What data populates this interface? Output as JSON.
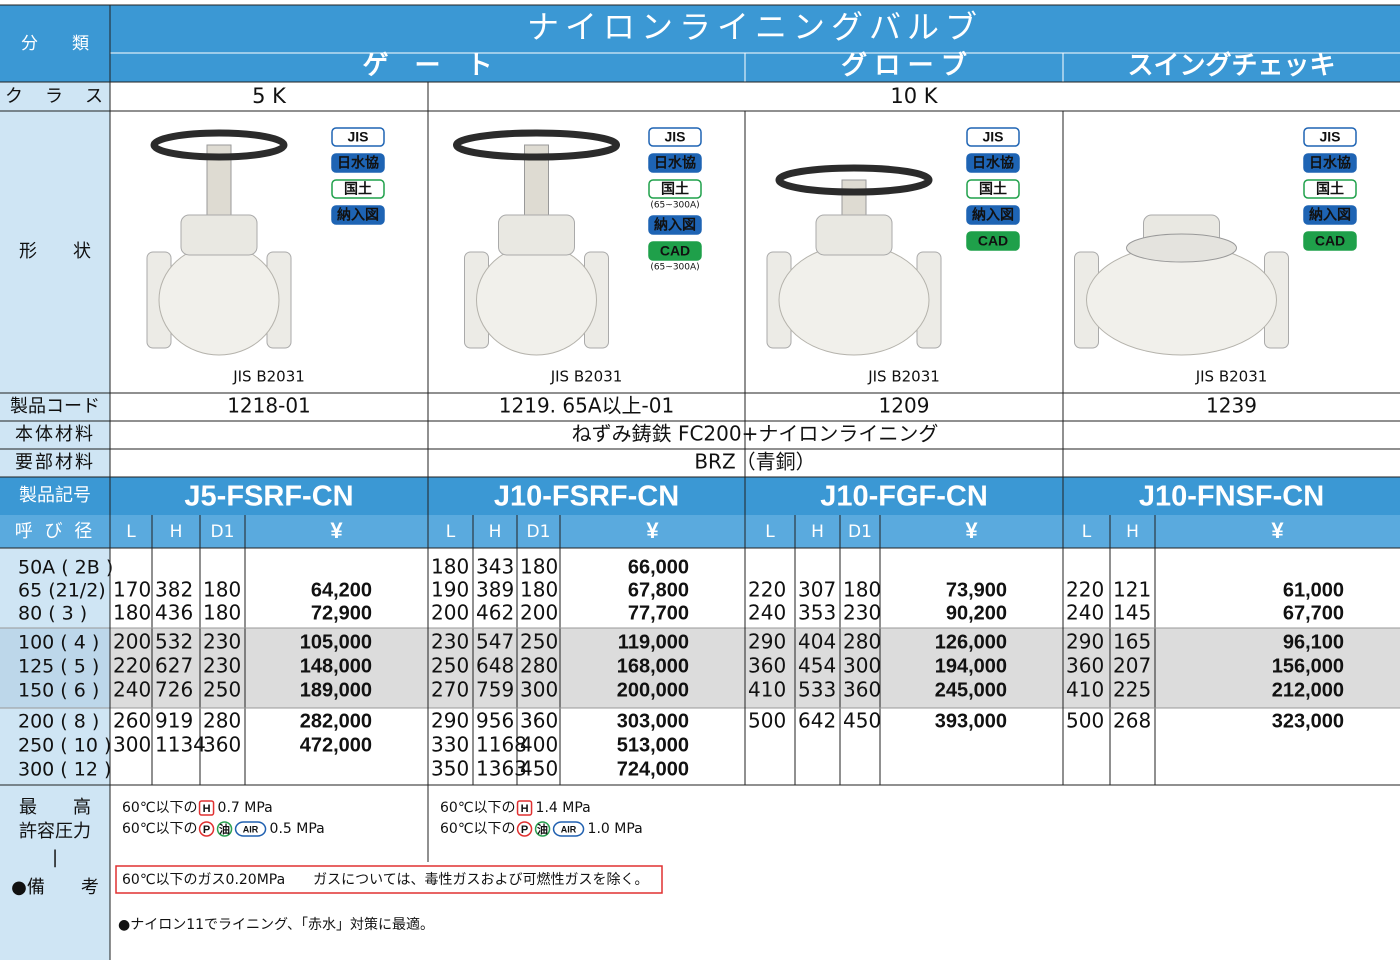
{
  "header": {
    "category_label": "分　　類",
    "title": "ナイロンライニングバルブ",
    "types": [
      "ゲ　ー　ト",
      "グ ロ ー ブ",
      "スイングチェッキ"
    ]
  },
  "class": {
    "label": "ク　ラ　ス",
    "values": [
      "5 K",
      "10 K"
    ]
  },
  "shape": {
    "label": "形　　状",
    "products": [
      {
        "standard": "JIS B2031",
        "badges": [
          {
            "text": "JIS",
            "kind": "outline-blue"
          },
          {
            "text": "日水協",
            "kind": "fill-blue"
          },
          {
            "text": "国土",
            "kind": "outline-green"
          },
          {
            "text": "納入図",
            "kind": "fill-blue"
          }
        ]
      },
      {
        "standard": "JIS B2031",
        "badges": [
          {
            "text": "JIS",
            "kind": "outline-blue"
          },
          {
            "text": "日水協",
            "kind": "fill-blue"
          },
          {
            "text": "国土",
            "kind": "outline-green",
            "note": "(65~300A)"
          },
          {
            "text": "納入図",
            "kind": "fill-blue"
          },
          {
            "text": "CAD",
            "kind": "fill-green",
            "note": "(65~300A)"
          }
        ]
      },
      {
        "standard": "JIS B2031",
        "badges": [
          {
            "text": "JIS",
            "kind": "outline-blue"
          },
          {
            "text": "日水協",
            "kind": "fill-blue"
          },
          {
            "text": "国土",
            "kind": "outline-green"
          },
          {
            "text": "納入図",
            "kind": "fill-blue"
          },
          {
            "text": "CAD",
            "kind": "fill-green"
          }
        ]
      },
      {
        "standard": "JIS B2031",
        "badges": [
          {
            "text": "JIS",
            "kind": "outline-blue"
          },
          {
            "text": "日水協",
            "kind": "fill-blue"
          },
          {
            "text": "国土",
            "kind": "outline-green"
          },
          {
            "text": "納入図",
            "kind": "fill-blue"
          },
          {
            "text": "CAD",
            "kind": "fill-green"
          }
        ]
      }
    ]
  },
  "codes": {
    "label": "製品コード",
    "values": [
      "1218-01",
      "1219. 65A以上-01",
      "1209",
      "1239"
    ]
  },
  "body_material": {
    "label": "本体材料",
    "value": "ねずみ鋳鉄 FC200+ナイロンライニング"
  },
  "key_material": {
    "label": "要部材料",
    "value": "BRZ（青銅）"
  },
  "models": {
    "label": "製品記号",
    "values": [
      "J5-FSRF-CN",
      "J10-FSRF-CN",
      "J10-FGF-CN",
      "J10-FNSF-CN"
    ]
  },
  "table": {
    "size_label": "呼 び 径",
    "sizes": [
      "50A ( 2B )",
      "65 (21/2)",
      "80 ( 3 )",
      "100 ( 4 )",
      "125 ( 5 )",
      "150 ( 6 )",
      "200 ( 8 )",
      "250 ( 10 )",
      "300 ( 12 )"
    ],
    "groups": [
      {
        "columns": [
          "L",
          "H",
          "D1",
          "¥"
        ],
        "rows": [
          null,
          [
            "170",
            "382",
            "180",
            "64,200"
          ],
          [
            "180",
            "436",
            "180",
            "72,900"
          ],
          [
            "200",
            "532",
            "230",
            "105,000"
          ],
          [
            "220",
            "627",
            "230",
            "148,000"
          ],
          [
            "240",
            "726",
            "250",
            "189,000"
          ],
          [
            "260",
            "919",
            "280",
            "282,000"
          ],
          [
            "300",
            "1134",
            "360",
            "472,000"
          ],
          null
        ]
      },
      {
        "columns": [
          "L",
          "H",
          "D1",
          "¥"
        ],
        "rows": [
          [
            "180",
            "343",
            "180",
            "66,000"
          ],
          [
            "190",
            "389",
            "180",
            "67,800"
          ],
          [
            "200",
            "462",
            "200",
            "77,700"
          ],
          [
            "230",
            "547",
            "250",
            "119,000"
          ],
          [
            "250",
            "648",
            "280",
            "168,000"
          ],
          [
            "270",
            "759",
            "300",
            "200,000"
          ],
          [
            "290",
            "956",
            "360",
            "303,000"
          ],
          [
            "330",
            "1168",
            "400",
            "513,000"
          ],
          [
            "350",
            "1363",
            "450",
            "724,000"
          ]
        ]
      },
      {
        "columns": [
          "L",
          "H",
          "D1",
          "¥"
        ],
        "rows": [
          null,
          [
            "220",
            "307",
            "180",
            "73,900"
          ],
          [
            "240",
            "353",
            "230",
            "90,200"
          ],
          [
            "290",
            "404",
            "280",
            "126,000"
          ],
          [
            "360",
            "454",
            "300",
            "194,000"
          ],
          [
            "410",
            "533",
            "360",
            "245,000"
          ],
          [
            "500",
            "642",
            "450",
            "393,000"
          ],
          null,
          null
        ]
      },
      {
        "columns": [
          "L",
          "H",
          "¥"
        ],
        "rows": [
          null,
          [
            "220",
            "121",
            "61,000"
          ],
          [
            "240",
            "145",
            "67,700"
          ],
          [
            "290",
            "165",
            "96,100"
          ],
          [
            "360",
            "207",
            "156,000"
          ],
          [
            "410",
            "225",
            "212,000"
          ],
          [
            "500",
            "268",
            "323,000"
          ],
          null,
          null
        ]
      }
    ]
  },
  "remarks": {
    "label_lines": [
      "最　　高",
      "許容圧力",
      "|",
      "●備　　考"
    ],
    "pressure": [
      [
        [
          {
            "t": "60℃以下の"
          },
          {
            "t": "H",
            "icon": "red-box"
          },
          {
            "t": " 0.7 MPa"
          }
        ],
        [
          {
            "t": "60℃以下の"
          },
          {
            "t": "P",
            "icon": "red-circle"
          },
          {
            "t": "油",
            "icon": "green-circle"
          },
          {
            "t": "AIR",
            "icon": "blue-oval"
          },
          {
            "t": " 0.5 MPa"
          }
        ]
      ],
      [
        [
          {
            "t": "60℃以下の"
          },
          {
            "t": "H",
            "icon": "red-box"
          },
          {
            "t": " 1.4 MPa"
          }
        ],
        [
          {
            "t": "60℃以下の"
          },
          {
            "t": "P",
            "icon": "red-circle"
          },
          {
            "t": "油",
            "icon": "green-circle"
          },
          {
            "t": "AIR",
            "icon": "blue-oval"
          },
          {
            "t": " 1.0 MPa"
          }
        ]
      ]
    ],
    "gas_note": "60℃以下のガス0.20MPa　　ガスについては、毒性ガスおよび可燃性ガスを除く。",
    "note": "●ナイロン11でライニング、「赤水」対策に最適。"
  }
}
